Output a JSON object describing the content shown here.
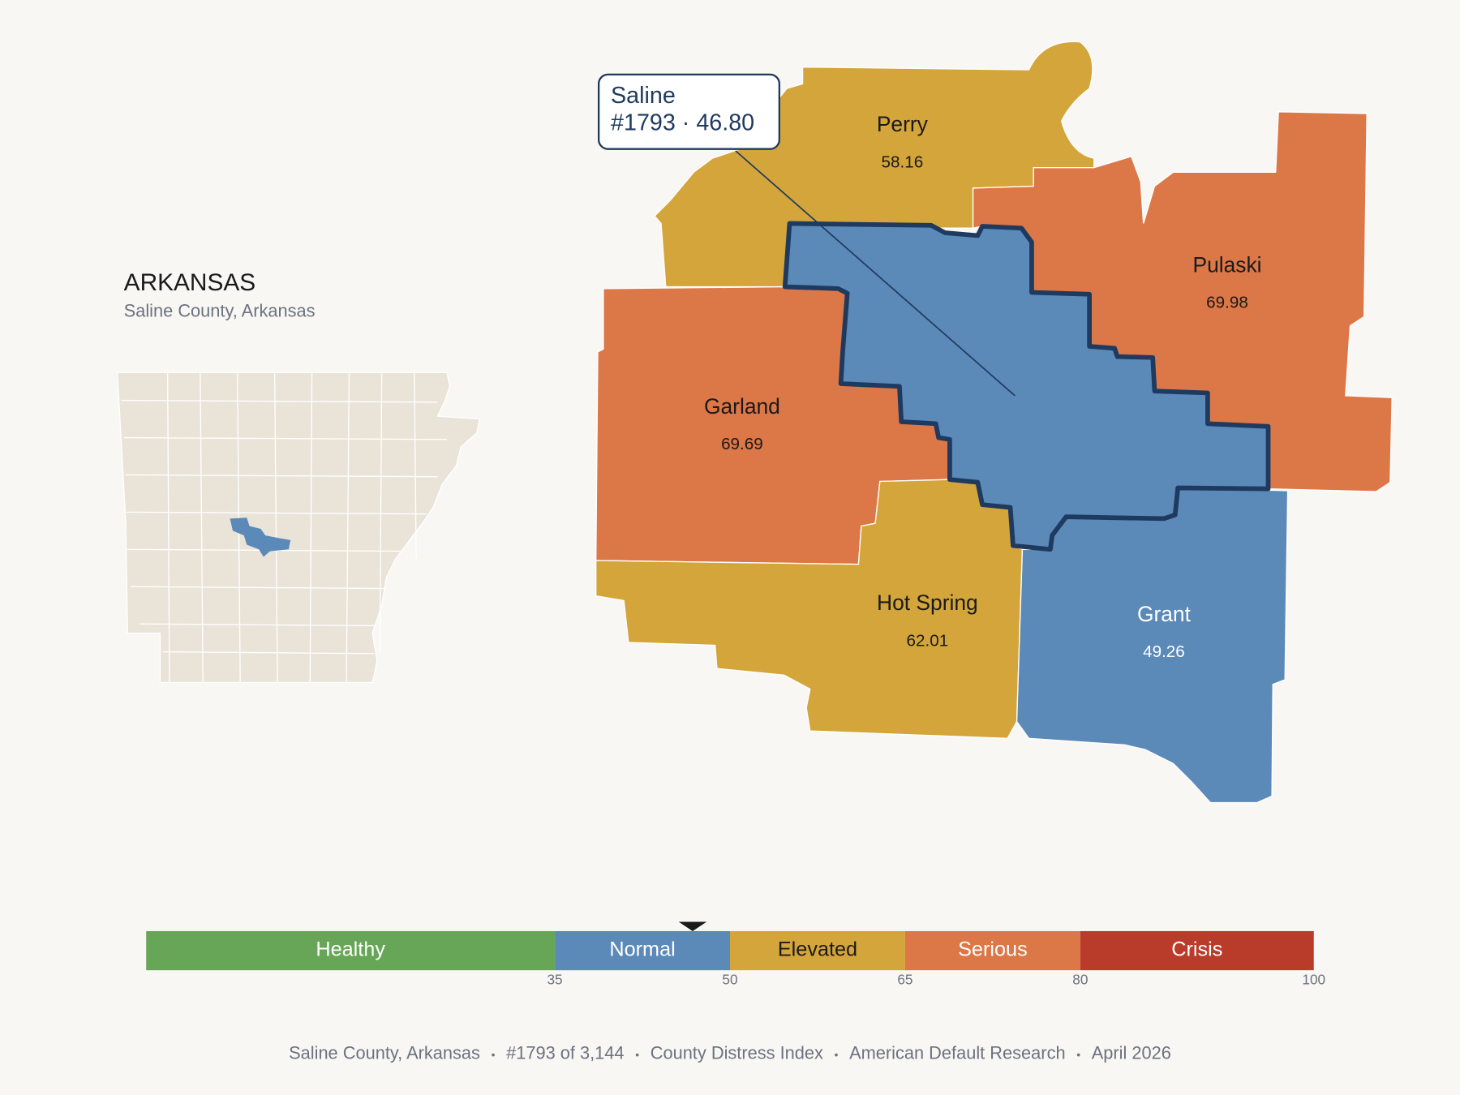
{
  "inset": {
    "title": "ARKANSAS",
    "subtitle": "Saline County, Arkansas"
  },
  "selected": {
    "name": "Saline",
    "label": "#1793 · 46.80",
    "score": 46.8
  },
  "counties": [
    {
      "name": "Perry",
      "value": 58.16,
      "label_color": "#1a1a1a"
    },
    {
      "name": "Pulaski",
      "value": 69.98,
      "label_color": "#1a1a1a"
    },
    {
      "name": "Garland",
      "value": 69.69,
      "label_color": "#1a1a1a"
    },
    {
      "name": "Hot Spring",
      "value": 62.01,
      "label_color": "#1a1a1a"
    },
    {
      "name": "Grant",
      "value": 49.26,
      "label_color": "#ffffff"
    }
  ],
  "scale": {
    "min": 0,
    "max": 100,
    "bands": [
      {
        "name": "Healthy",
        "to": 35,
        "color": "#67A657",
        "text_color": "#ffffff"
      },
      {
        "name": "Normal",
        "to": 50,
        "color": "#5B89B8",
        "text_color": "#ffffff"
      },
      {
        "name": "Elevated",
        "to": 65,
        "color": "#D4A53A",
        "text_color": "#1a1a1a"
      },
      {
        "name": "Serious",
        "to": 80,
        "color": "#DC7747",
        "text_color": "#ffffff"
      },
      {
        "name": "Crisis",
        "to": 100,
        "color": "#B93C2B",
        "text_color": "#ffffff"
      }
    ],
    "ticks": [
      35,
      50,
      65,
      80,
      100
    ]
  },
  "footer": [
    "Saline County, Arkansas",
    "#1793 of 3,144",
    "County Distress Index",
    "American Default Research",
    "April 2026"
  ]
}
